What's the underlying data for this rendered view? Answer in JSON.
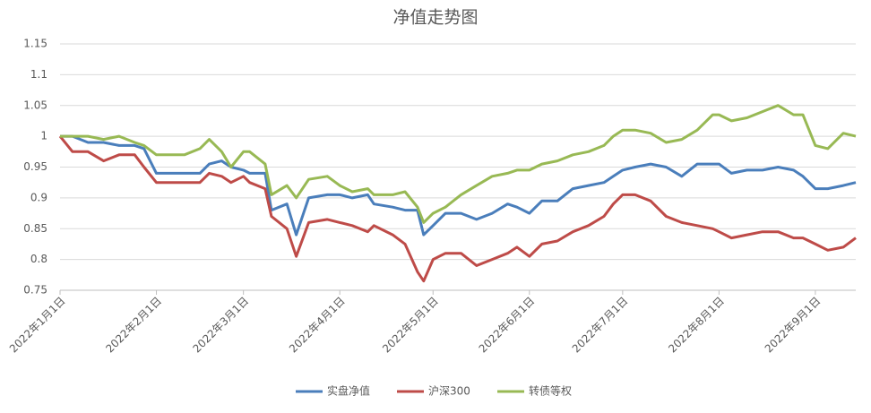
{
  "chart_data": {
    "type": "line",
    "title": "净值走势图",
    "x": [
      "2022-01-01",
      "2022-01-05",
      "2022-01-10",
      "2022-01-15",
      "2022-01-20",
      "2022-01-25",
      "2022-01-28",
      "2022-02-01",
      "2022-02-10",
      "2022-02-15",
      "2022-02-18",
      "2022-02-22",
      "2022-02-25",
      "2022-03-01",
      "2022-03-03",
      "2022-03-08",
      "2022-03-10",
      "2022-03-15",
      "2022-03-18",
      "2022-03-22",
      "2022-03-28",
      "2022-04-01",
      "2022-04-05",
      "2022-04-10",
      "2022-04-12",
      "2022-04-18",
      "2022-04-22",
      "2022-04-26",
      "2022-04-28",
      "2022-05-01",
      "2022-05-05",
      "2022-05-10",
      "2022-05-15",
      "2022-05-20",
      "2022-05-25",
      "2022-05-28",
      "2022-06-01",
      "2022-06-05",
      "2022-06-10",
      "2022-06-15",
      "2022-06-20",
      "2022-06-25",
      "2022-06-28",
      "2022-07-01",
      "2022-07-05",
      "2022-07-10",
      "2022-07-15",
      "2022-07-20",
      "2022-07-25",
      "2022-07-30",
      "2022-08-01",
      "2022-08-05",
      "2022-08-10",
      "2022-08-15",
      "2022-08-20",
      "2022-08-25",
      "2022-08-28",
      "2022-09-01",
      "2022-09-05",
      "2022-09-10",
      "2022-09-14"
    ],
    "series": [
      {
        "name": "实盘净值",
        "color": "#4a7ebb",
        "values": [
          1.0,
          1.0,
          0.99,
          0.99,
          0.985,
          0.985,
          0.98,
          0.94,
          0.94,
          0.94,
          0.955,
          0.96,
          0.95,
          0.945,
          0.94,
          0.94,
          0.88,
          0.89,
          0.84,
          0.9,
          0.905,
          0.905,
          0.9,
          0.905,
          0.89,
          0.885,
          0.88,
          0.88,
          0.84,
          0.855,
          0.875,
          0.875,
          0.865,
          0.875,
          0.89,
          0.885,
          0.875,
          0.895,
          0.895,
          0.915,
          0.92,
          0.925,
          0.935,
          0.945,
          0.95,
          0.955,
          0.95,
          0.935,
          0.955,
          0.955,
          0.955,
          0.94,
          0.945,
          0.945,
          0.95,
          0.945,
          0.935,
          0.915,
          0.915,
          0.92,
          0.925
        ]
      },
      {
        "name": "沪深300",
        "color": "#be4b48",
        "values": [
          1.0,
          0.975,
          0.975,
          0.96,
          0.97,
          0.97,
          0.95,
          0.925,
          0.925,
          0.925,
          0.94,
          0.935,
          0.925,
          0.935,
          0.925,
          0.915,
          0.87,
          0.85,
          0.805,
          0.86,
          0.865,
          0.86,
          0.855,
          0.845,
          0.855,
          0.84,
          0.825,
          0.78,
          0.765,
          0.8,
          0.81,
          0.81,
          0.79,
          0.8,
          0.81,
          0.82,
          0.805,
          0.825,
          0.83,
          0.845,
          0.855,
          0.87,
          0.89,
          0.905,
          0.905,
          0.895,
          0.87,
          0.86,
          0.855,
          0.85,
          0.845,
          0.835,
          0.84,
          0.845,
          0.845,
          0.835,
          0.835,
          0.825,
          0.815,
          0.82,
          0.835
        ]
      },
      {
        "name": "转债等权",
        "color": "#98b954",
        "values": [
          1.0,
          1.0,
          1.0,
          0.995,
          1.0,
          0.99,
          0.985,
          0.97,
          0.97,
          0.98,
          0.995,
          0.975,
          0.95,
          0.975,
          0.975,
          0.955,
          0.905,
          0.92,
          0.9,
          0.93,
          0.935,
          0.92,
          0.91,
          0.915,
          0.905,
          0.905,
          0.91,
          0.885,
          0.86,
          0.875,
          0.885,
          0.905,
          0.92,
          0.935,
          0.94,
          0.945,
          0.945,
          0.955,
          0.96,
          0.97,
          0.975,
          0.985,
          1.0,
          1.01,
          1.01,
          1.005,
          0.99,
          0.995,
          1.01,
          1.035,
          1.035,
          1.025,
          1.03,
          1.04,
          1.05,
          1.035,
          1.035,
          0.985,
          0.98,
          1.005,
          1.0
        ]
      }
    ],
    "xlim": [
      "2022-01-01",
      "2022-09-14"
    ],
    "xticks": [
      {
        "value": "2022-01-01",
        "label": "2022年1月1日"
      },
      {
        "value": "2022-02-01",
        "label": "2022年2月1日"
      },
      {
        "value": "2022-03-01",
        "label": "2022年3月1日"
      },
      {
        "value": "2022-04-01",
        "label": "2022年4月1日"
      },
      {
        "value": "2022-05-01",
        "label": "2022年5月1日"
      },
      {
        "value": "2022-06-01",
        "label": "2022年6月1日"
      },
      {
        "value": "2022-07-01",
        "label": "2022年7月1日"
      },
      {
        "value": "2022-08-01",
        "label": "2022年8月1日"
      },
      {
        "value": "2022-09-01",
        "label": "2022年9月1日"
      }
    ],
    "ylim": [
      0.75,
      1.15
    ],
    "yticks": [
      0.75,
      0.8,
      0.85,
      0.9,
      0.95,
      1,
      1.05,
      1.1,
      1.15
    ],
    "grid": true,
    "legend": "bottom"
  }
}
